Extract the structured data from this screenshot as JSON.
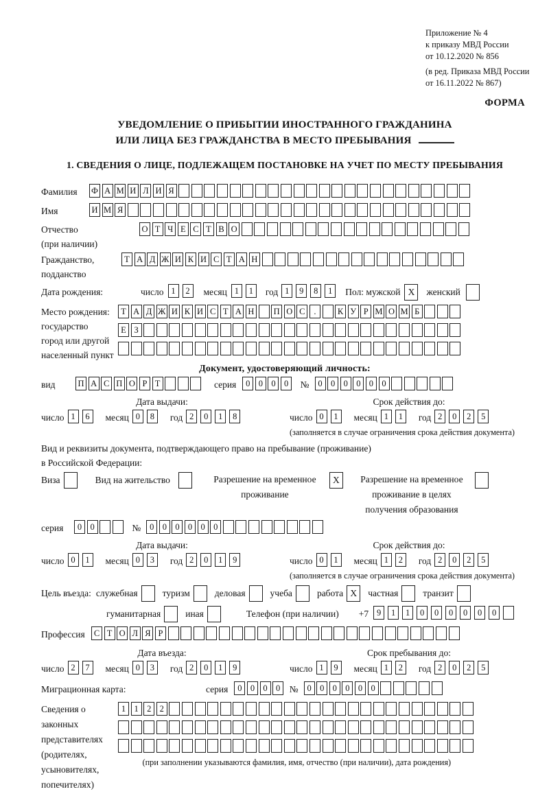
{
  "words": {
    "day": "число",
    "month": "месяц",
    "year": "год",
    "series": "серия",
    "number": "№"
  },
  "header": {
    "annex_lines": [
      "Приложение № 4",
      "к приказу МВД России",
      "от 10.12.2020 № 856"
    ],
    "revision_lines": [
      "(в ред. Приказа МВД России",
      "от 16.11.2022 № 867)"
    ],
    "form_label": "ФОРМА"
  },
  "title": {
    "line1": "УВЕДОМЛЕНИЕ О ПРИБЫТИИ ИНОСТРАННОГО ГРАЖДАНИНА",
    "line2": "ИЛИ ЛИЦА БЕЗ ГРАЖДАНСТВА В МЕСТО ПРЕБЫВАНИЯ"
  },
  "section1_heading": "1. СВЕДЕНИЯ О ЛИЦЕ, ПОДЛЕЖАЩЕМ ПОСТАНОВКЕ НА УЧЕТ ПО МЕСТУ ПРЕБЫВАНИЯ",
  "surname": {
    "label": "Фамилия",
    "text": "ФАМИЛИЯ",
    "len": 30
  },
  "firstname": {
    "label": "Имя",
    "text": "ИМЯ",
    "len": 30
  },
  "patronymic": {
    "label": "Отчество",
    "sublabel": "(при наличии)",
    "text": "ОТЧЕСТВО",
    "len": 26
  },
  "citizenship": {
    "label": "Гражданство,",
    "sublabel": "подданство",
    "text": "ТАДЖИКИСТАН",
    "len": 27
  },
  "birth": {
    "label": "Дата рождения:",
    "day": {
      "text": "12",
      "len": 2
    },
    "month": {
      "text": "11",
      "len": 2
    },
    "year": {
      "text": "1981",
      "len": 4
    },
    "sex_label": "Пол: мужской",
    "male_mark": "X",
    "female_label": "женский",
    "female_mark": ""
  },
  "birthplace": {
    "label_lines": [
      "Место рождения:",
      "государство",
      "город или другой",
      "населенный пункт"
    ],
    "rows": [
      {
        "text": "ТАДЖИКИСТАН ПОС. КУРМОМБ",
        "len": 27
      },
      {
        "text": "ЕЗ",
        "len": 27
      },
      {
        "text": "",
        "len": 27
      }
    ]
  },
  "identity_doc": {
    "heading": "Документ, удостоверяющий личность:",
    "kind_label": "вид",
    "kind": {
      "text": "ПАСПОРТ",
      "len": 10
    },
    "series": {
      "text": "0000",
      "len": 4
    },
    "number": {
      "text": "000000",
      "len": 11
    },
    "issue": {
      "label": "Дата выдачи:",
      "day": {
        "text": "16",
        "len": 2
      },
      "month": {
        "text": "08",
        "len": 2
      },
      "year": {
        "text": "2018",
        "len": 4
      }
    },
    "expiry": {
      "label": "Срок действия до:",
      "day": {
        "text": "01",
        "len": 2
      },
      "month": {
        "text": "11",
        "len": 2
      },
      "year": {
        "text": "2025",
        "len": 4
      }
    },
    "note": "(заполняется в случае ограничения срока действия документа)"
  },
  "residence_doc": {
    "intro1": "Вид и реквизиты документа, подтверждающего право на пребывание (проживание)",
    "intro2": "в Российской Федерации:",
    "options": [
      {
        "label": "Виза",
        "mark": ""
      },
      {
        "label": "Вид на жительство",
        "mark": ""
      },
      {
        "lines": [
          "Разрешение на временное",
          "проживание"
        ],
        "mark": "X"
      },
      {
        "lines": [
          "Разрешение на временное",
          "проживание в целях",
          "получения образования"
        ],
        "mark": ""
      }
    ],
    "series": {
      "text": "00",
      "len": 4
    },
    "number": {
      "text": "000000",
      "len": 14
    },
    "issue": {
      "label": "Дата выдачи:",
      "day": {
        "text": "01",
        "len": 2
      },
      "month": {
        "text": "03",
        "len": 2
      },
      "year": {
        "text": "2019",
        "len": 4
      }
    },
    "expiry": {
      "label": "Срок действия до:",
      "day": {
        "text": "01",
        "len": 2
      },
      "month": {
        "text": "12",
        "len": 2
      },
      "year": {
        "text": "2025",
        "len": 4
      }
    },
    "note": "(заполняется в случае ограничения срока действия документа)"
  },
  "purpose": {
    "label": "Цель въезда:",
    "options_line1": [
      {
        "label": "служебная",
        "mark": ""
      },
      {
        "label": "туризм",
        "mark": ""
      },
      {
        "label": "деловая",
        "mark": ""
      },
      {
        "label": "учеба",
        "mark": ""
      },
      {
        "label": "работа",
        "mark": "X"
      },
      {
        "label": "частная",
        "mark": ""
      },
      {
        "label": "транзит",
        "mark": ""
      }
    ],
    "options_line2": [
      {
        "label": "гуманитарная",
        "mark": ""
      },
      {
        "label": "иная",
        "mark": ""
      }
    ],
    "phone_label": "Телефон (при наличии)",
    "phone_prefix": "+7",
    "phone": {
      "text": "911000000",
      "len": 10
    }
  },
  "profession": {
    "label": "Профессия",
    "text": "СТОЛЯР",
    "len": 29
  },
  "entry": {
    "arrival": {
      "label": "Дата въезда:",
      "day": {
        "text": "27",
        "len": 2
      },
      "month": {
        "text": "03",
        "len": 2
      },
      "year": {
        "text": "2019",
        "len": 4
      }
    },
    "stay_until": {
      "label": "Срок пребывания до:",
      "day": {
        "text": "19",
        "len": 2
      },
      "month": {
        "text": "12",
        "len": 2
      },
      "year": {
        "text": "2025",
        "len": 4
      }
    }
  },
  "migration_card": {
    "label": "Миграционная карта:",
    "series": {
      "text": "0000",
      "len": 4
    },
    "number": {
      "text": "000000",
      "len": 11
    }
  },
  "representatives": {
    "label_lines": [
      "Сведения о",
      "законных",
      "представителях",
      "(родителях,",
      "усыновителях,",
      "попечителях)"
    ],
    "rows": [
      {
        "text": "1122",
        "len": 28
      },
      {
        "text": "",
        "len": 28
      },
      {
        "text": "",
        "len": 28
      }
    ],
    "note": "(при заполнении указываются фамилия, имя, отчество (при наличии), дата рождения)"
  }
}
